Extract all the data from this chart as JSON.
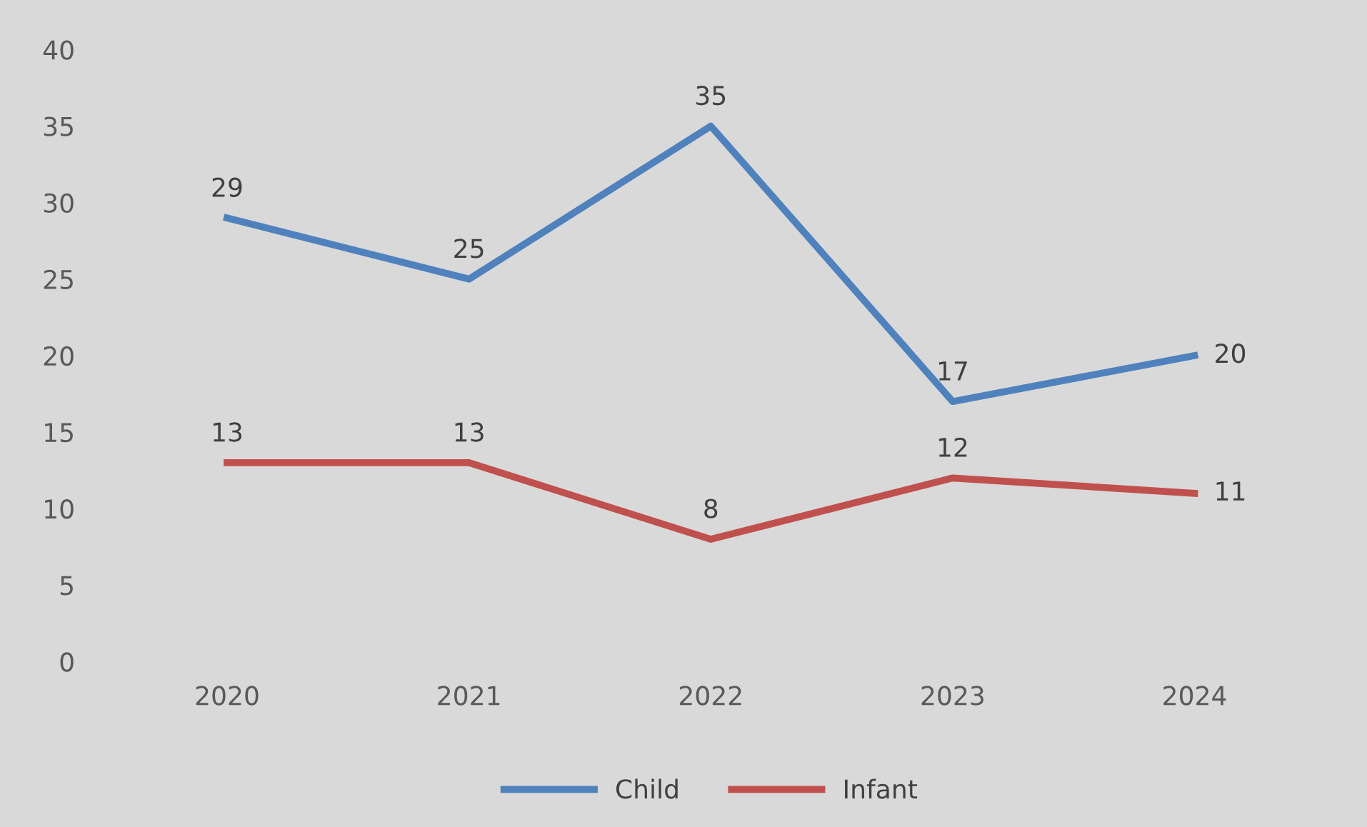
{
  "chart_data": {
    "type": "line",
    "categories": [
      "2020",
      "2021",
      "2022",
      "2023",
      "2024"
    ],
    "series": [
      {
        "name": "Child",
        "color": "#4f81bd",
        "values": [
          29,
          25,
          35,
          17,
          20
        ]
      },
      {
        "name": "Infant",
        "color": "#c0504d",
        "values": [
          13,
          13,
          8,
          12,
          11
        ]
      }
    ],
    "ylim": [
      0,
      40
    ],
    "yticks": [
      0,
      5,
      10,
      15,
      20,
      25,
      30,
      35,
      40
    ],
    "grid": false,
    "legend": "bottom",
    "data_labels": true,
    "marker": "none",
    "line_style": "solid"
  }
}
